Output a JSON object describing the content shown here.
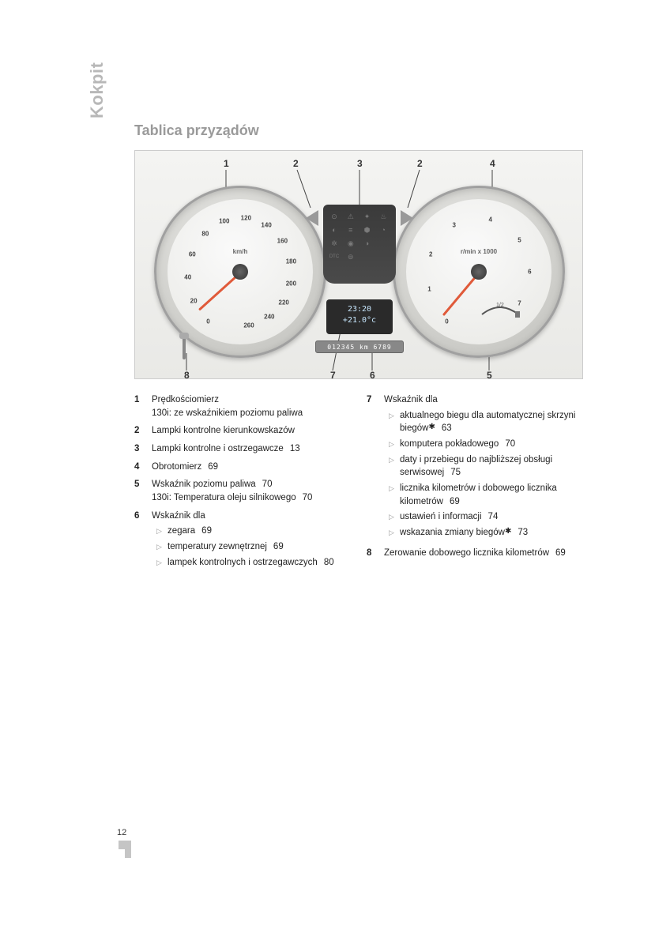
{
  "side_title": "Kokpit",
  "title": "Tablica przyządów",
  "page_number": "12",
  "figure": {
    "callouts": [
      "1",
      "2",
      "3",
      "2",
      "4",
      "5",
      "6",
      "7",
      "8"
    ],
    "speedo": {
      "unit": "km/h",
      "ticks": [
        "0",
        "20",
        "40",
        "60",
        "80",
        "100",
        "120",
        "140",
        "160",
        "180",
        "200",
        "220",
        "240",
        "260"
      ]
    },
    "tacho": {
      "unit": "r/min x 1000",
      "ticks": [
        "0",
        "1",
        "2",
        "3",
        "4",
        "5",
        "6",
        "7"
      ]
    },
    "display": {
      "time": "23:20",
      "temp": "+21.0°c"
    },
    "odometer": "012345 km 6789"
  },
  "left_col": [
    {
      "n": "1",
      "text": "Prędkościomierz",
      "sub_text": "130i: ze wskaźnikiem poziomu paliwa"
    },
    {
      "n": "2",
      "text": "Lampki kontrolne kierunkowskazów"
    },
    {
      "n": "3",
      "text": "Lampki kontrolne i ostrzegawcze",
      "ref": "13"
    },
    {
      "n": "4",
      "text": "Obrotomierz",
      "ref": "69"
    },
    {
      "n": "5",
      "text": "Wskaźnik poziomu paliwa",
      "ref": "70",
      "sub_text": "130i: Temperatura oleju silnikowego",
      "sub_ref": "70"
    },
    {
      "n": "6",
      "text": "Wskaźnik dla",
      "bullets": [
        {
          "t": "zegara",
          "r": "69"
        },
        {
          "t": "temperatury zewnętrznej",
          "r": "69"
        },
        {
          "t": "lampek kontrolnych i ostrzegawczych",
          "r": "80"
        }
      ]
    }
  ],
  "right_col": [
    {
      "n": "7",
      "text": "Wskaźnik dla",
      "bullets": [
        {
          "t": "aktualnego biegu dla automatycznej skrzyni biegów",
          "star": true,
          "r": "63"
        },
        {
          "t": "komputera pokładowego",
          "r": "70"
        },
        {
          "t": "daty i przebiegu do najbliższej obsługi serwisowej",
          "r": "75"
        },
        {
          "t": "licznika kilometrów i dobowego licznika kilometrów",
          "r": "69"
        },
        {
          "t": "ustawień i informacji",
          "r": "74"
        },
        {
          "t": "wskazania zmiany biegów",
          "star": true,
          "r": "73"
        }
      ]
    },
    {
      "n": "8",
      "text": "Zerowanie dobowego licznika kilometrów",
      "ref": "69"
    }
  ],
  "colors": {
    "side_title": "#b8b8b8",
    "title": "#9a9a9a",
    "needle": "#e05a3a",
    "triangle": "#999999"
  }
}
